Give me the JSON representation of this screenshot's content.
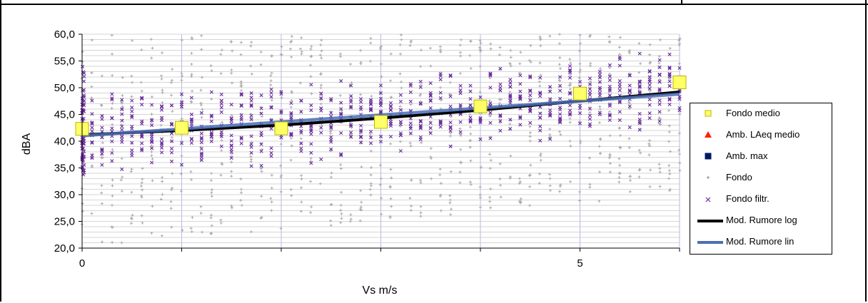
{
  "chart_data": {
    "type": "scatter",
    "xlabel": "Vs m/s",
    "ylabel": "dBA",
    "xlim": [
      0,
      6
    ],
    "ylim": [
      20,
      60
    ],
    "y_ticks": [
      "20,0",
      "25,0",
      "30,0",
      "35,0",
      "40,0",
      "45,0",
      "50,0",
      "55,0",
      "60,0"
    ],
    "x_tick_labels": [
      {
        "value": 0,
        "label": "0"
      },
      {
        "value": 5,
        "label": "5"
      }
    ],
    "grid": true,
    "legend_position": "right",
    "series": [
      {
        "name": "Fondo medio",
        "marker": "square",
        "color": "#ffff66",
        "x": [
          0,
          1,
          2,
          3,
          4,
          5,
          6
        ],
        "y": [
          42.3,
          42.5,
          42.4,
          43.6,
          46.5,
          48.9,
          51.0
        ]
      },
      {
        "name": "Amb. LAeq medio",
        "marker": "triangle",
        "color": "#ff2200",
        "x": [],
        "y": []
      },
      {
        "name": "Amb. max",
        "marker": "square",
        "color": "#001a66",
        "x": [],
        "y": []
      },
      {
        "name": "Fondo",
        "marker": "plus",
        "color": "#aaaaaa",
        "x_columns_step": 0.1,
        "y_range_by_x": [
          [
            0,
            20,
            60
          ],
          [
            3,
            25,
            60
          ],
          [
            6,
            30,
            60
          ]
        ]
      },
      {
        "name": "Fondo filtr.",
        "marker": "x",
        "color": "#6a2c9e",
        "x_columns_step": 0.1,
        "y_center_by_x": [
          [
            0,
            41.5
          ],
          [
            1,
            42.5
          ],
          [
            2,
            43.0
          ],
          [
            3,
            44.0
          ],
          [
            4,
            46.0
          ],
          [
            5,
            48.0
          ],
          [
            6,
            50.5
          ]
        ],
        "y_spread": 8
      },
      {
        "name": "Mod. Rumore log",
        "type": "line",
        "color": "#000000",
        "x": [
          0,
          1,
          2,
          3,
          4,
          5,
          6
        ],
        "y": [
          41.2,
          42.0,
          43.0,
          44.3,
          45.8,
          47.5,
          49.2
        ]
      },
      {
        "name": "Mod. Rumore lin",
        "type": "line",
        "color": "#4a6fb5",
        "x": [
          0,
          6
        ],
        "y": [
          41.0,
          48.8
        ]
      }
    ]
  }
}
